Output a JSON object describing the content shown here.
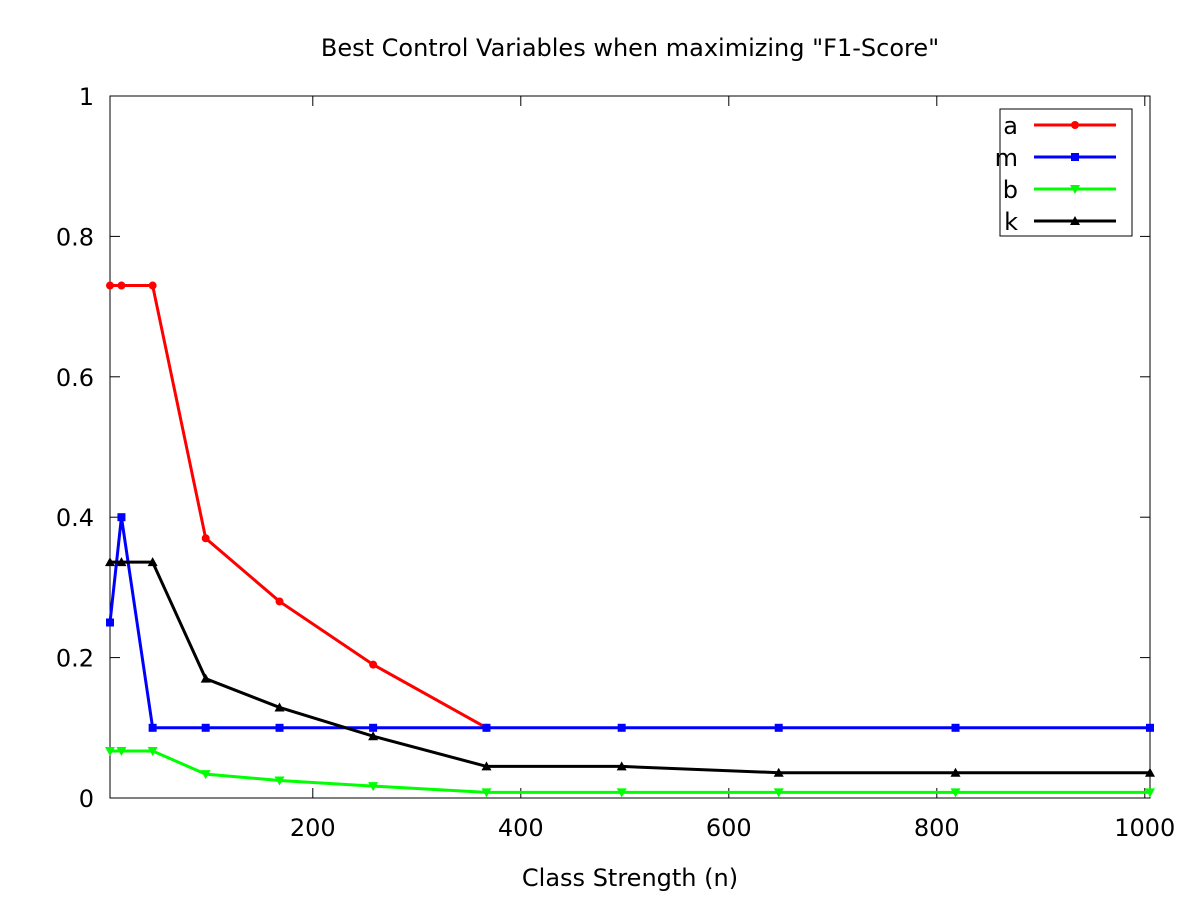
{
  "chart_data": {
    "type": "line",
    "title": "Best Control Variables when maximizing \"F1-Score\"",
    "xlabel": "Class Strength (n)",
    "ylabel": "",
    "xlim": [
      5,
      1005
    ],
    "ylim": [
      0,
      1
    ],
    "x_ticks": [
      200,
      400,
      600,
      800,
      1000
    ],
    "x_tick_labels": [
      "200",
      "400",
      "600",
      "800",
      "1000"
    ],
    "y_ticks": [
      0,
      0.2,
      0.4,
      0.6,
      0.8,
      1
    ],
    "y_tick_labels": [
      "0",
      "0.2",
      "0.4",
      "0.6",
      "0.8",
      "1"
    ],
    "grid": false,
    "legend_position": "top-right",
    "x": [
      5,
      16,
      46,
      97,
      168,
      258,
      367,
      497,
      648,
      818,
      1005
    ],
    "series": [
      {
        "name": "a",
        "color": "#ff0000",
        "marker": "circle",
        "x": [
          5,
          16,
          46,
          97,
          168,
          258,
          367
        ],
        "values": [
          0.73,
          0.73,
          0.73,
          0.37,
          0.28,
          0.19,
          0.1
        ]
      },
      {
        "name": "m",
        "color": "#0000ff",
        "marker": "square",
        "x": [
          5,
          16,
          46,
          97,
          168,
          258,
          367,
          497,
          648,
          818,
          1005
        ],
        "values": [
          0.25,
          0.4,
          0.1,
          0.1,
          0.1,
          0.1,
          0.1,
          0.1,
          0.1,
          0.1,
          0.1
        ]
      },
      {
        "name": "b",
        "color": "#00ff00",
        "marker": "triangle-down",
        "x": [
          5,
          16,
          46,
          97,
          168,
          258,
          367,
          497,
          648,
          818,
          1005
        ],
        "values": [
          0.067,
          0.067,
          0.067,
          0.034,
          0.025,
          0.017,
          0.008,
          0.008,
          0.008,
          0.008,
          0.008
        ]
      },
      {
        "name": "k",
        "color": "#000000",
        "marker": "triangle-up",
        "x": [
          5,
          16,
          46,
          97,
          168,
          258,
          367,
          497,
          648,
          818,
          1005
        ],
        "values": [
          0.336,
          0.336,
          0.336,
          0.17,
          0.129,
          0.088,
          0.045,
          0.045,
          0.036,
          0.036,
          0.036
        ]
      }
    ]
  }
}
